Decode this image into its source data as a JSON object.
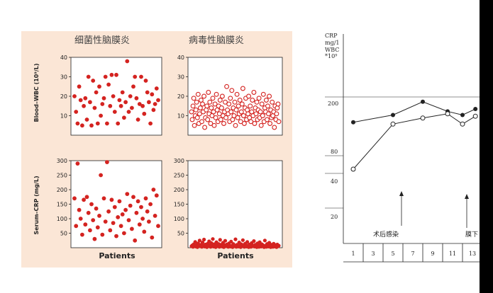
{
  "left_figure": {
    "col_titles": [
      "细菌性脑膜炎",
      "病毒性脑膜炎"
    ],
    "row_labels": [
      "Blood–WBC (10⁹/L)",
      "Serum–CRP (mg/L)"
    ],
    "x_label": "Patients"
  },
  "right_figure": {
    "y_header": [
      "CRP",
      "mg/1",
      "WBC",
      "*10⁹"
    ],
    "annotations": [
      "术后感染",
      "膜下"
    ]
  },
  "colors": {
    "bacterial": "#d42320",
    "viral": "#d42320",
    "panel_bg": "#fbe6d6",
    "plot_bg": "#ffffff"
  },
  "chart_data": [
    {
      "type": "scatter",
      "panel": "bacterial-wbc",
      "title": "细菌性脑膜炎",
      "ylabel": "Blood–WBC (10⁹/L)",
      "ylim": [
        0,
        40
      ],
      "yticks": [
        10,
        20,
        30,
        40
      ],
      "marker": "filled",
      "x": [
        1,
        2,
        3,
        4,
        5,
        6,
        7,
        8,
        9,
        10,
        11,
        12,
        13,
        14,
        15,
        16,
        17,
        18,
        19,
        20,
        21,
        22,
        23,
        24,
        25,
        26,
        27,
        28,
        29,
        30,
        31,
        32,
        33,
        34,
        35,
        36,
        37,
        38,
        39,
        40,
        41,
        42,
        43,
        44,
        45,
        46,
        47,
        48,
        49,
        50,
        51,
        52,
        53,
        54,
        55
      ],
      "y": [
        20,
        12,
        6,
        25,
        18,
        5,
        15,
        19,
        8,
        30,
        17,
        5,
        28,
        14,
        22,
        6,
        25,
        10,
        16,
        19,
        30,
        6,
        26,
        15,
        31,
        20,
        12,
        31,
        6,
        18,
        15,
        22,
        9,
        17,
        38,
        12,
        20,
        14,
        25,
        30,
        19,
        8,
        16,
        30,
        15,
        11,
        28,
        22,
        17,
        6,
        21,
        13,
        16,
        24,
        18
      ]
    },
    {
      "type": "scatter",
      "panel": "viral-wbc",
      "title": "病毒性脑膜炎",
      "ylim": [
        0,
        40
      ],
      "yticks": [
        10,
        20,
        30,
        40
      ],
      "marker": "open",
      "x": [
        1,
        2,
        3,
        4,
        5,
        6,
        7,
        8,
        9,
        10,
        11,
        12,
        13,
        14,
        15,
        16,
        17,
        18,
        19,
        20,
        21,
        22,
        23,
        24,
        25,
        26,
        27,
        28,
        29,
        30,
        31,
        32,
        33,
        34,
        35,
        36,
        37,
        38,
        39,
        40,
        41,
        42,
        43,
        44,
        45,
        46,
        47,
        48,
        49,
        50,
        51,
        52,
        53,
        54,
        55,
        56,
        57,
        58,
        59,
        60,
        61,
        62,
        63,
        64,
        65,
        66,
        67,
        68,
        69,
        70,
        71,
        72,
        73,
        74,
        75,
        76,
        77,
        78,
        79,
        80,
        81,
        82,
        83,
        84,
        85,
        86,
        87,
        88,
        89,
        90,
        91,
        92,
        93,
        94,
        95,
        96,
        97,
        98,
        99,
        100,
        101,
        102,
        103,
        104,
        105,
        106,
        107,
        108,
        109,
        110,
        111,
        112,
        113,
        114,
        115,
        116,
        117,
        118,
        119,
        120
      ],
      "y": [
        12,
        8,
        15,
        19,
        5,
        10,
        13,
        17,
        9,
        21,
        6,
        11,
        14,
        18,
        7,
        16,
        12,
        20,
        4,
        9,
        13,
        15,
        8,
        22,
        11,
        17,
        6,
        14,
        10,
        19,
        12,
        5,
        16,
        9,
        21,
        13,
        7,
        15,
        11,
        18,
        8,
        14,
        20,
        10,
        6,
        12,
        17,
        9,
        25,
        13,
        11,
        16,
        7,
        19,
        12,
        23,
        8,
        14,
        10,
        17,
        5,
        13,
        21,
        9,
        15,
        11,
        18,
        7,
        12,
        16,
        24,
        10,
        6,
        14,
        19,
        8,
        13,
        11,
        20,
        9,
        15,
        7,
        12,
        18,
        10,
        22,
        6,
        14,
        11,
        17,
        8,
        13,
        19,
        9,
        12,
        5,
        16,
        10,
        21,
        7,
        14,
        12,
        18,
        8,
        15,
        11,
        20,
        6,
        13,
        9,
        17,
        10,
        12,
        4,
        15,
        8,
        11,
        14,
        16,
        7
      ]
    },
    {
      "type": "scatter",
      "panel": "bacterial-crp",
      "ylabel": "Serum–CRP (mg/L)",
      "ylim": [
        0,
        300
      ],
      "yticks": [
        50,
        100,
        150,
        200,
        250,
        300
      ],
      "marker": "filled",
      "x": [
        1,
        2,
        3,
        4,
        5,
        6,
        7,
        8,
        9,
        10,
        11,
        12,
        13,
        14,
        15,
        16,
        17,
        18,
        19,
        20,
        21,
        22,
        23,
        24,
        25,
        26,
        27,
        28,
        29,
        30,
        31,
        32,
        33,
        34,
        35,
        36,
        37,
        38,
        39,
        40,
        41,
        42,
        43,
        44,
        45,
        46,
        47,
        48,
        49,
        50,
        51,
        52,
        53,
        54,
        55
      ],
      "y": [
        170,
        75,
        290,
        130,
        100,
        45,
        165,
        80,
        175,
        120,
        60,
        150,
        95,
        30,
        135,
        70,
        110,
        250,
        45,
        170,
        90,
        295,
        125,
        60,
        165,
        85,
        140,
        40,
        105,
        160,
        75,
        115,
        50,
        130,
        185,
        95,
        145,
        65,
        175,
        25,
        120,
        160,
        80,
        140,
        100,
        55,
        170,
        125,
        90,
        150,
        35,
        200,
        110,
        180,
        75
      ]
    },
    {
      "type": "scatter",
      "panel": "viral-crp",
      "ylim": [
        0,
        300
      ],
      "yticks": [
        50,
        100,
        150,
        200,
        250,
        300
      ],
      "marker": "filled",
      "x": [
        1,
        2,
        3,
        4,
        5,
        6,
        7,
        8,
        9,
        10,
        11,
        12,
        13,
        14,
        15,
        16,
        17,
        18,
        19,
        20,
        21,
        22,
        23,
        24,
        25,
        26,
        27,
        28,
        29,
        30,
        31,
        32,
        33,
        34,
        35,
        36,
        37,
        38,
        39,
        40,
        41,
        42,
        43,
        44,
        45,
        46,
        47,
        48,
        49,
        50,
        51,
        52,
        53,
        54,
        55,
        56,
        57,
        58,
        59,
        60,
        61,
        62,
        63,
        64,
        65,
        66,
        67,
        68,
        69,
        70,
        71,
        72,
        73,
        74,
        75,
        76,
        77,
        78,
        79,
        80,
        81,
        82,
        83,
        84,
        85,
        86,
        87,
        88,
        89,
        90,
        91,
        92,
        93,
        94,
        95,
        96,
        97,
        98,
        99,
        100,
        101,
        102,
        103,
        104,
        105,
        106,
        107,
        108,
        109,
        110,
        111,
        112,
        113,
        114,
        115,
        116,
        117,
        118,
        119,
        120
      ],
      "y": [
        5,
        8,
        3,
        12,
        6,
        20,
        4,
        9,
        2,
        15,
        7,
        25,
        5,
        10,
        3,
        18,
        6,
        28,
        4,
        11,
        8,
        2,
        14,
        5,
        22,
        9,
        3,
        16,
        7,
        30,
        4,
        12,
        6,
        2,
        19,
        8,
        5,
        13,
        3,
        27,
        10,
        6,
        4,
        17,
        2,
        9,
        24,
        5,
        11,
        7,
        3,
        15,
        8,
        4,
        21,
        6,
        2,
        13,
        9,
        5,
        29,
        3,
        10,
        7,
        4,
        18,
        6,
        2,
        12,
        8,
        26,
        5,
        3,
        14,
        9,
        4,
        20,
        7,
        2,
        11,
        6,
        3,
        16,
        8,
        5,
        23,
        4,
        10,
        7,
        2,
        15,
        6,
        3,
        19,
        9,
        4,
        12,
        5,
        8,
        2,
        25,
        6,
        3,
        13,
        7,
        4,
        17,
        5,
        2,
        10,
        8,
        3,
        14,
        6,
        4,
        9,
        2,
        11,
        5,
        7
      ]
    },
    {
      "type": "line",
      "panel": "right-crp-wbc",
      "x_categories": [
        "1",
        "3",
        "5",
        "7",
        "9",
        "11",
        "13"
      ],
      "yticks": [
        "200",
        "80",
        "40",
        "20"
      ],
      "series": [
        {
          "marker": "filled",
          "x": [
            1,
            5,
            8,
            10.5,
            12,
            13.3
          ],
          "y": [
            158,
            170,
            192,
            176,
            170,
            180
          ]
        },
        {
          "marker": "open",
          "x": [
            1,
            5,
            8,
            10.5,
            12,
            13.3
          ],
          "y": [
            80,
            155,
            165,
            172,
            155,
            168
          ]
        }
      ]
    }
  ]
}
